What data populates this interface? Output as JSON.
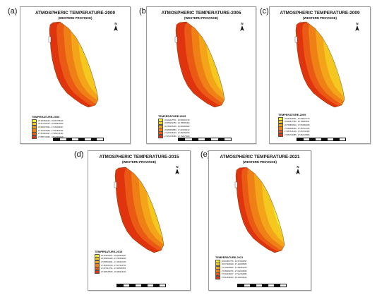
{
  "colors": {
    "band1": "#f3ee2e",
    "band2": "#f5c820",
    "band3": "#f4a419",
    "band4": "#ef8016",
    "band5": "#ea5a14",
    "band6": "#e0340f"
  },
  "north_label": "N",
  "panels": [
    {
      "letter": "(a)",
      "title": "ATMOSPHERIC TEMPERATURE-2000",
      "subtitle": "(WESTERN PROVINCE)",
      "legend_title": "TEMPERATURE-2000",
      "legend_items": [
        "26.322894245 - 26.667765415",
        "26.667765416 - 26.965870529",
        "26.965870530 - 27.262029467",
        "27.262029468 - 27.561820406",
        "27.561820407 - 27.885716482",
        "27.885716483 - 28.223200138"
      ]
    },
    {
      "letter": "(b)",
      "title": "ATMOSPHERIC TEMPERATURE-2005",
      "subtitle": "(WESTERN PROVINCE)",
      "legend_title": "TEMPERATURE-2005",
      "legend_items": [
        "26.240247571 - 26.555362749",
        "26.555362750 - 26.785255404",
        "26.785255405 - 26.965950882",
        "26.965950883 - 27.215335132",
        "27.215335133 - 27.452766379",
        "27.452766380 - 27.752475209"
      ]
    },
    {
      "letter": "(c)",
      "title": "ATMOSPHERIC TEMPERATURE-2009",
      "subtitle": "(WESTERN PROVINCE)",
      "legend_title": "TEMPERATURE-2009",
      "legend_items": [
        "26.187942531 - 26.490427779",
        "26.490427780 - 26.789863521",
        "26.789863522 - 27.084966328",
        "27.084966329 - 27.387614415",
        "27.387614416 - 27.681790484",
        "27.681790485 - 27.981729866"
      ]
    },
    {
      "letter": "(d)",
      "title": "ATMOSPHERIC TEMPERATURE-2015",
      "subtitle": "(WESTERN PROVINCE)",
      "legend_title": "TEMPERATURE-2015",
      "legend_items": [
        "26.543456571 - 26.809204307",
        "26.809204308 - 27.085669940",
        "27.085669941 - 27.363037203",
        "27.363037204 - 27.637114790",
        "27.637114791 - 27.906545524",
        "27.906545525 - 28.180422104"
      ]
    },
    {
      "letter": "(e)",
      "title": "ATMOSPHERIC TEMPERATURE-2021",
      "subtitle": "(WESTERN PROVINCE)",
      "legend_title": "TEMPERATURE-2021",
      "legend_items": [
        "26.843867755 - 26.973494597",
        "26.973494598 - 27.102490505",
        "27.102490506 - 27.380362705",
        "27.380362706 - 27.642436936",
        "27.642436937 - 27.912544989",
        "27.912544990 - 28.183136642"
      ]
    }
  ]
}
